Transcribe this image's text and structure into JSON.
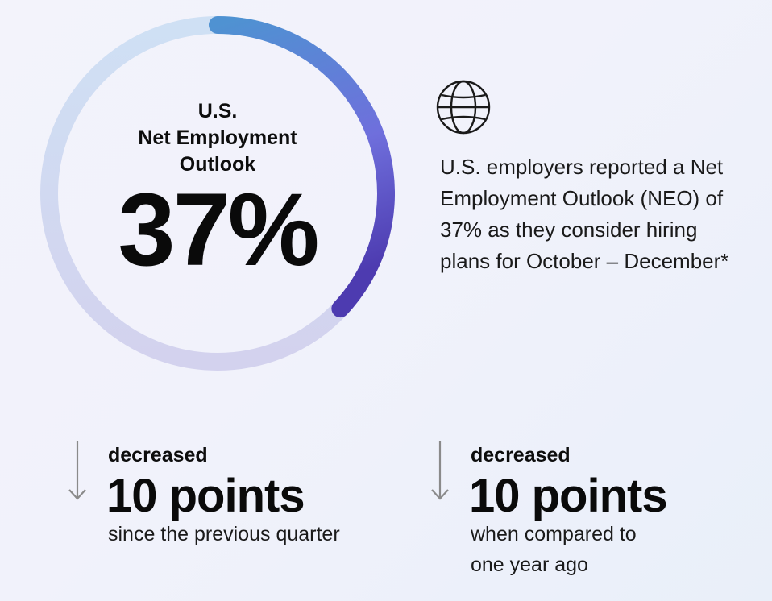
{
  "gauge": {
    "title_lines": [
      "U.S.",
      "Net Employment",
      "Outlook"
    ],
    "value_text": "37%",
    "fill_fraction": 0.37,
    "colors": {
      "track": "#d4daf1",
      "arc_start": "#4f92d2",
      "arc_mid": "#6f6fdc",
      "arc_end": "#4d3bb0"
    }
  },
  "summary": {
    "icon": "globe-icon",
    "text": "U.S. employers reported a Net Employment Outlook (NEO) of 37% as they consider hiring plans for October – December*"
  },
  "stats": [
    {
      "icon": "arrow-down-icon",
      "label": "decreased",
      "value": "10 points",
      "note": "since the previous quarter"
    },
    {
      "icon": "arrow-down-icon",
      "label": "decreased",
      "value": "10 points",
      "note": "when compared to one year ago"
    }
  ]
}
